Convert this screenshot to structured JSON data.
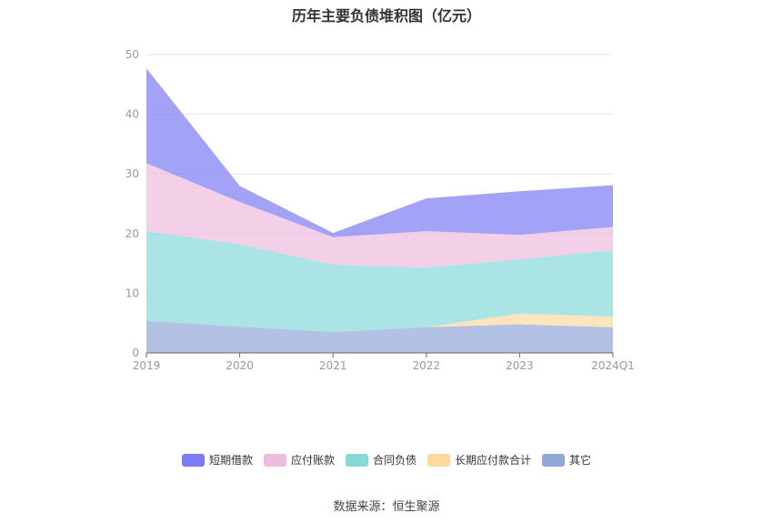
{
  "chart_data": {
    "type": "area",
    "title": "历年主要负债堆积图（亿元）",
    "categories": [
      "2019",
      "2020",
      "2021",
      "2022",
      "2023",
      "2024Q1"
    ],
    "ylim": [
      0,
      50
    ],
    "yticks": [
      0,
      10,
      20,
      30,
      40,
      50
    ],
    "grid": true,
    "stacked": true,
    "legend_position": "bottom",
    "series": [
      {
        "name": "其它",
        "color": "#92a7d8",
        "values": [
          5.4,
          4.4,
          3.5,
          4.3,
          4.8,
          4.3
        ]
      },
      {
        "name": "长期应付款合计",
        "color": "#ffd9a0",
        "values": [
          0.0,
          0.0,
          0.0,
          0.0,
          1.8,
          1.8
        ]
      },
      {
        "name": "合同负债",
        "color": "#86d9d8",
        "values": [
          15.0,
          13.8,
          11.3,
          10.0,
          9.1,
          11.1
        ]
      },
      {
        "name": "应付账款",
        "color": "#eebcdd",
        "values": [
          11.4,
          7.1,
          4.6,
          6.1,
          4.1,
          3.9
        ]
      },
      {
        "name": "短期借款",
        "color": "#7b7cf4",
        "values": [
          15.9,
          2.7,
          0.7,
          5.5,
          7.3,
          7.0
        ]
      }
    ]
  },
  "legend_order": [
    {
      "label": "短期借款",
      "color": "#7b7cf4"
    },
    {
      "label": "应付账款",
      "color": "#eebcdd"
    },
    {
      "label": "合同负债",
      "color": "#86d9d8"
    },
    {
      "label": "长期应付款合计",
      "color": "#ffd9a0"
    },
    {
      "label": "其它",
      "color": "#92a7d8"
    }
  ],
  "source": "数据来源：恒生聚源"
}
